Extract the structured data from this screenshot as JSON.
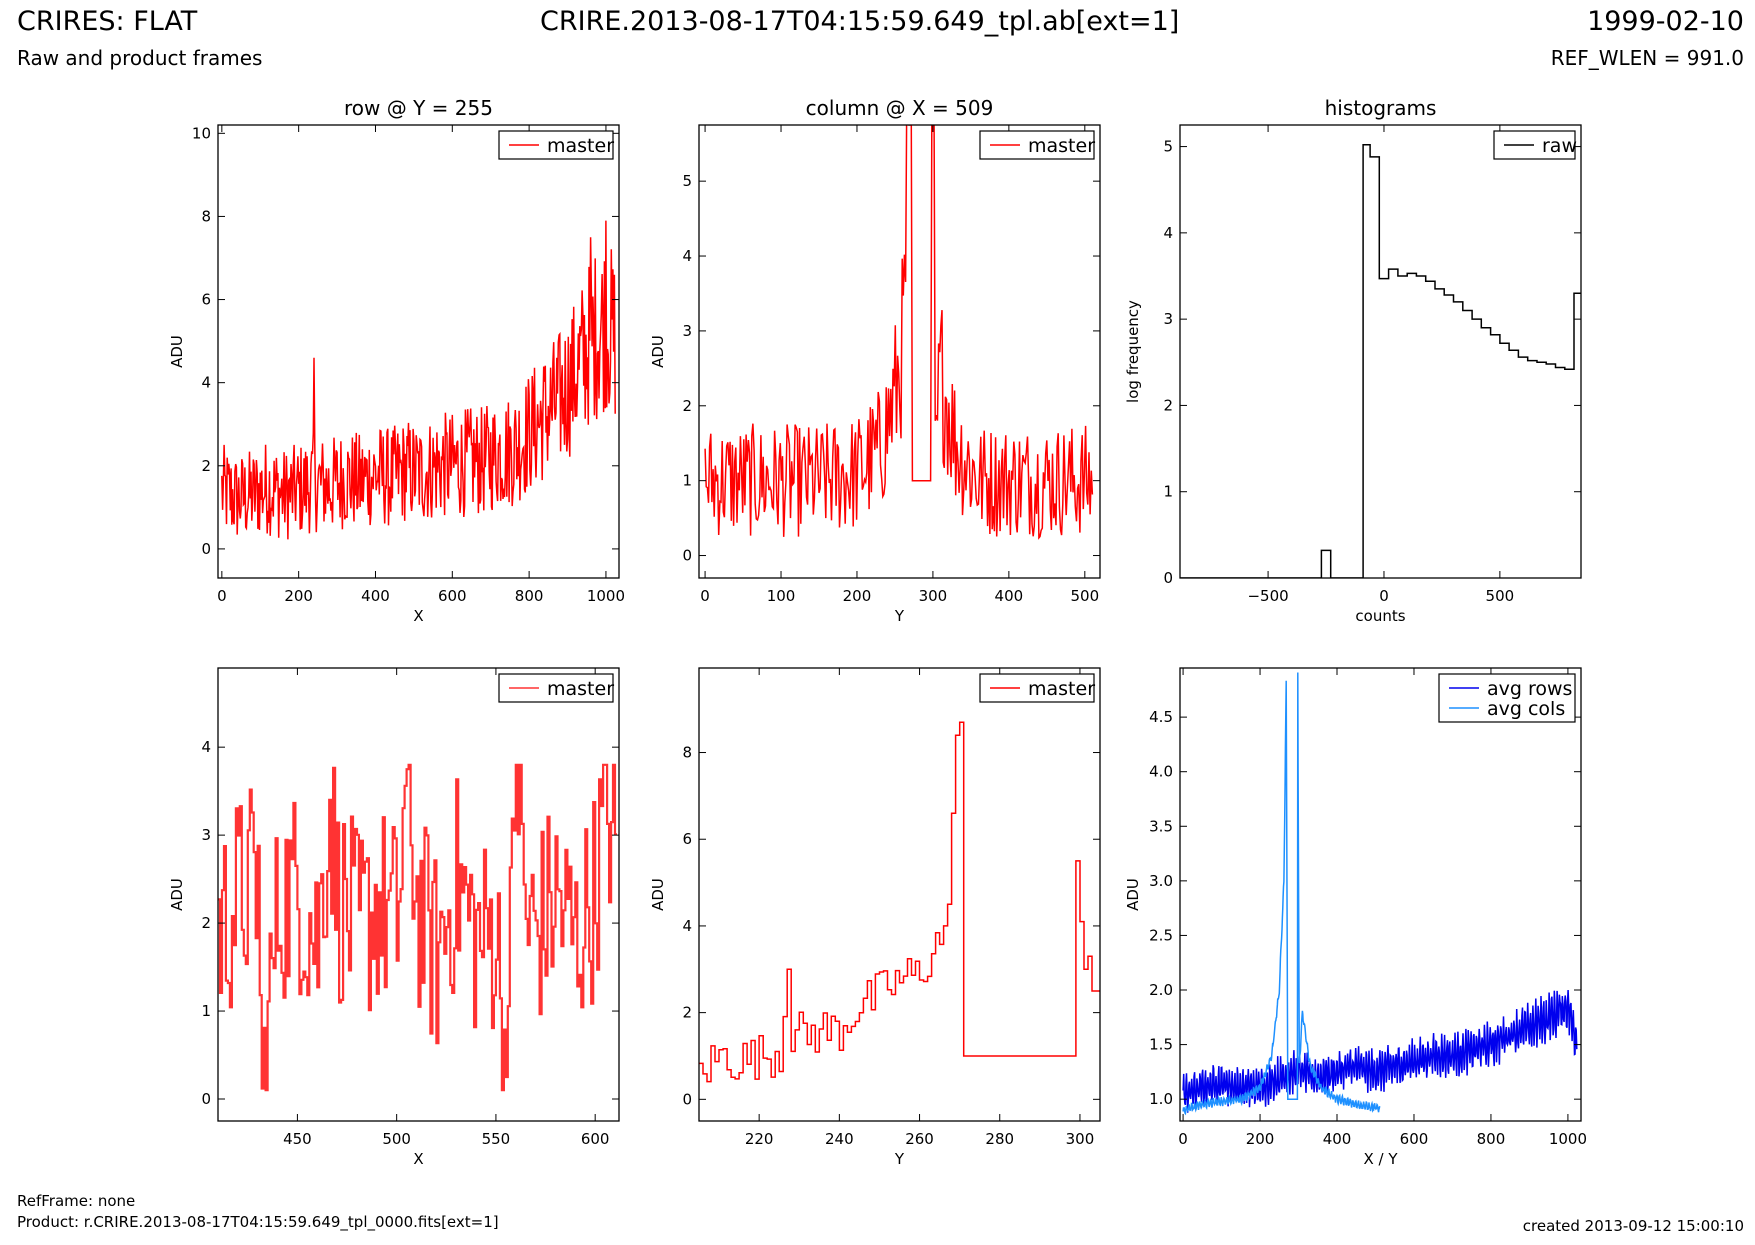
{
  "header": {
    "title": "CRIRES: FLAT",
    "subtitle": "Raw and product frames",
    "file": "CRIRE.2013-08-17T04:15:59.649_tpl.ab[ext=1]",
    "date": "1999-02-10",
    "ref_wlen": "REF_WLEN = 991.0"
  },
  "footer": {
    "refframe": "RefFrame: none",
    "product": "Product: r.CRIRE.2013-08-17T04:15:59.649_tpl_0000.fits[ext=1]",
    "created": "created 2013-09-12 15:00:10"
  },
  "colors": {
    "red": "#ff0000",
    "lightred": "#ff3333",
    "black": "#000000",
    "blue": "#0000ee",
    "lightblue": "#1e90ff"
  },
  "chart_data": [
    {
      "id": "p1",
      "type": "line",
      "title": "row @ Y = 255",
      "xlabel": "X",
      "ylabel": "ADU",
      "xlim": [
        -10,
        1034
      ],
      "ylim": [
        -0.7,
        10.2
      ],
      "xticks": [
        0,
        200,
        400,
        600,
        800,
        1000
      ],
      "yticks": [
        0,
        2,
        4,
        6,
        8,
        10
      ],
      "legend": [
        "master"
      ],
      "legend_loc": "top-right",
      "series": [
        {
          "name": "master",
          "color": "#ff0000",
          "x": [
            0,
            40,
            80,
            120,
            160,
            200,
            240,
            280,
            320,
            360,
            400,
            440,
            480,
            520,
            560,
            600,
            640,
            680,
            720,
            760,
            800,
            840,
            880,
            920,
            960,
            1000,
            1024
          ],
          "y": [
            1.4,
            1.2,
            1.3,
            1.5,
            1.3,
            1.4,
            1.6,
            1.5,
            1.7,
            1.6,
            1.8,
            1.7,
            1.9,
            1.8,
            2.0,
            2.0,
            2.1,
            2.1,
            2.3,
            2.4,
            2.8,
            3.2,
            3.6,
            4.2,
            5.0,
            5.5,
            5.0
          ]
        }
      ]
    },
    {
      "id": "p2",
      "type": "line",
      "title": "column @ X = 509",
      "xlabel": "Y",
      "ylabel": "ADU",
      "xlim": [
        -8,
        520
      ],
      "ylim": [
        -0.3,
        5.75
      ],
      "xticks": [
        0,
        100,
        200,
        300,
        400,
        500
      ],
      "yticks": [
        0,
        1,
        2,
        3,
        4,
        5
      ],
      "legend": [
        "master"
      ],
      "legend_loc": "top-right",
      "series": [
        {
          "name": "master",
          "color": "#ff0000",
          "x": [
            0,
            50,
            100,
            150,
            200,
            230,
            250,
            262,
            268,
            272,
            290,
            298,
            302,
            310,
            330,
            360,
            400,
            450,
            500,
            511
          ],
          "y": [
            1.0,
            1.0,
            1.0,
            1.0,
            1.1,
            1.4,
            2.1,
            3.0,
            5.75,
            1.0,
            1.0,
            5.75,
            1.0,
            2.5,
            1.5,
            1.0,
            1.0,
            1.0,
            1.0,
            1.0
          ]
        }
      ]
    },
    {
      "id": "p3",
      "type": "step",
      "title": "histograms",
      "xlabel": "counts",
      "ylabel": "log frequency",
      "xlim": [
        -880,
        850
      ],
      "ylim": [
        0,
        5.25
      ],
      "xticks": [
        -500,
        0,
        500
      ],
      "xticklabels": [
        "−500",
        "0",
        "500"
      ],
      "yticks": [
        0,
        1,
        2,
        3,
        4,
        5
      ],
      "legend": [
        "raw"
      ],
      "legend_loc": "top-right",
      "series": [
        {
          "name": "raw",
          "color": "#000000",
          "x": [
            -880,
            -270,
            -230,
            -90,
            -60,
            -20,
            20,
            60,
            100,
            140,
            180,
            220,
            260,
            300,
            340,
            380,
            420,
            460,
            500,
            540,
            580,
            620,
            660,
            700,
            740,
            780,
            820,
            850
          ],
          "y": [
            0,
            0.32,
            0,
            5.02,
            4.88,
            3.47,
            3.58,
            3.5,
            3.53,
            3.5,
            3.44,
            3.35,
            3.28,
            3.2,
            3.1,
            3.0,
            2.9,
            2.82,
            2.72,
            2.64,
            2.56,
            2.52,
            2.5,
            2.48,
            2.44,
            2.42,
            3.3,
            3.3
          ]
        }
      ]
    },
    {
      "id": "p4",
      "type": "step",
      "title": "",
      "xlabel": "X",
      "ylabel": "ADU",
      "xlim": [
        410,
        612
      ],
      "ylim": [
        -0.25,
        4.9
      ],
      "xticks": [
        450,
        500,
        550,
        600
      ],
      "yticks": [
        0,
        1,
        2,
        3,
        4
      ],
      "legend": [
        "master"
      ],
      "legend_loc": "top-right",
      "series": [
        {
          "name": "master",
          "color": "#ff3333",
          "x": [
            410,
            420,
            430,
            432,
            440,
            450,
            460,
            466,
            470,
            480,
            490,
            500,
            505,
            510,
            520,
            530,
            540,
            550,
            555,
            560,
            565,
            570,
            580,
            590,
            600,
            605,
            610
          ],
          "y": [
            1.9,
            2.3,
            2.5,
            0.1,
            2.2,
            2.4,
            1.8,
            3.4,
            2.3,
            1.9,
            2.2,
            2.0,
            3.7,
            2.2,
            1.6,
            2.5,
            1.8,
            1.9,
            0.2,
            3.8,
            2.0,
            1.9,
            2.3,
            1.8,
            2.4,
            3.4,
            2.8
          ]
        }
      ]
    },
    {
      "id": "p5",
      "type": "step",
      "title": "",
      "xlabel": "Y",
      "ylabel": "ADU",
      "xlim": [
        205,
        305
      ],
      "ylim": [
        -0.5,
        9.95
      ],
      "xticks": [
        220,
        240,
        260,
        280,
        300
      ],
      "yticks": [
        0,
        2,
        4,
        6,
        8
      ],
      "legend": [
        "master"
      ],
      "legend_loc": "top-right",
      "series": [
        {
          "name": "master",
          "color": "#ff0000",
          "x": [
            205,
            210,
            215,
            220,
            225,
            227,
            228,
            232,
            236,
            240,
            244,
            248,
            252,
            256,
            260,
            264,
            266,
            267,
            268,
            269,
            270,
            271,
            272,
            299,
            300,
            301,
            302,
            303,
            304,
            305
          ],
          "y": [
            0.6,
            1.0,
            0.9,
            1.0,
            1.1,
            3.0,
            1.5,
            1.5,
            1.6,
            1.6,
            2.1,
            2.3,
            2.6,
            2.8,
            2.9,
            3.6,
            4.0,
            4.5,
            6.6,
            8.4,
            8.7,
            1.0,
            1.0,
            5.5,
            4.1,
            3.0,
            3.3,
            2.5,
            2.5,
            2.5
          ]
        }
      ]
    },
    {
      "id": "p6",
      "type": "line",
      "title": "",
      "xlabel": "X / Y",
      "ylabel": "ADU",
      "xlim": [
        -8,
        1034
      ],
      "ylim": [
        0.8,
        4.95
      ],
      "xticks": [
        0,
        200,
        400,
        600,
        800,
        1000
      ],
      "yticks": [
        1.0,
        1.5,
        2.0,
        2.5,
        3.0,
        3.5,
        4.0,
        4.5
      ],
      "yticklabels": [
        "1.0",
        "1.5",
        "2.0",
        "2.5",
        "3.0",
        "3.5",
        "4.0",
        "4.5"
      ],
      "legend": [
        "avg rows",
        "avg cols"
      ],
      "legend_loc": "top-right",
      "series": [
        {
          "name": "avg rows",
          "color": "#0000ee",
          "x": [
            0,
            50,
            100,
            150,
            200,
            250,
            300,
            350,
            400,
            450,
            500,
            550,
            600,
            650,
            700,
            750,
            800,
            850,
            900,
            950,
            1000,
            1024
          ],
          "y": [
            1.05,
            1.1,
            1.15,
            1.1,
            1.1,
            1.2,
            1.25,
            1.2,
            1.25,
            1.3,
            1.25,
            1.3,
            1.35,
            1.4,
            1.4,
            1.45,
            1.5,
            1.6,
            1.65,
            1.75,
            1.85,
            1.5
          ]
        },
        {
          "name": "avg cols",
          "color": "#1e90ff",
          "x": [
            0,
            50,
            100,
            150,
            200,
            230,
            250,
            262,
            268,
            272,
            290,
            298,
            302,
            310,
            330,
            360,
            400,
            450,
            511
          ],
          "y": [
            0.9,
            0.95,
            0.98,
            1.0,
            1.1,
            1.4,
            2.0,
            3.0,
            4.8,
            1.0,
            1.0,
            4.95,
            1.3,
            1.8,
            1.3,
            1.1,
            1.0,
            0.95,
            0.92
          ]
        }
      ]
    }
  ]
}
